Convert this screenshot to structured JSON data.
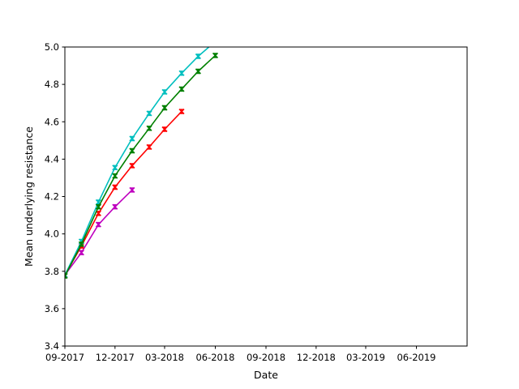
{
  "chart_data": {
    "type": "line",
    "title": "",
    "xlabel": "Date",
    "ylabel": "Mean underlying resistance",
    "xlim": [
      "2017-09-01",
      "2019-09-01"
    ],
    "ylim": [
      3.4,
      5.0
    ],
    "grid": false,
    "x_tick_labels": [
      "09-2017",
      "12-2017",
      "03-2018",
      "06-2018",
      "09-2018",
      "12-2018",
      "03-2019",
      "06-2019"
    ],
    "x_tick_dates": [
      "2017-09-01",
      "2017-12-01",
      "2018-03-01",
      "2018-06-01",
      "2018-09-01",
      "2018-12-01",
      "2019-03-01",
      "2019-06-01"
    ],
    "y_tick_labels": [
      "3.4",
      "3.6",
      "3.8",
      "4.0",
      "4.2",
      "4.4",
      "4.6",
      "4.8",
      "5.0"
    ],
    "y_ticks": [
      3.4,
      3.6,
      3.8,
      4.0,
      4.2,
      4.4,
      4.6,
      4.8,
      5.0
    ],
    "series": [
      {
        "color": "#bf00bf",
        "x": [
          "2017-09-01",
          "2017-10-01",
          "2017-11-01",
          "2017-12-01",
          "2018-01-01"
        ],
        "y": [
          3.78,
          3.9,
          4.05,
          4.145,
          4.235
        ]
      },
      {
        "color": "#ff0000",
        "x": [
          "2017-09-01",
          "2017-10-01",
          "2017-11-01",
          "2017-12-01",
          "2018-01-01",
          "2018-02-01",
          "2018-03-01",
          "2018-04-01"
        ],
        "y": [
          3.78,
          3.935,
          4.11,
          4.25,
          4.365,
          4.465,
          4.56,
          4.655
        ]
      },
      {
        "color": "#00bfbf",
        "x": [
          "2017-09-01",
          "2017-10-01",
          "2017-11-01",
          "2017-12-01",
          "2018-01-01",
          "2018-02-01",
          "2018-03-01",
          "2018-04-01",
          "2018-05-01",
          "2018-06-01"
        ],
        "y": [
          3.78,
          3.96,
          4.17,
          4.355,
          4.51,
          4.645,
          4.76,
          4.86,
          4.95,
          5.03
        ]
      },
      {
        "color": "#008000",
        "x": [
          "2017-09-01",
          "2017-10-01",
          "2017-11-01",
          "2017-12-01",
          "2018-01-01",
          "2018-02-01",
          "2018-03-01",
          "2018-04-01",
          "2018-05-01",
          "2018-06-01"
        ],
        "y": [
          3.775,
          3.945,
          4.145,
          4.31,
          4.445,
          4.565,
          4.675,
          4.775,
          4.87,
          4.955
        ]
      }
    ]
  }
}
